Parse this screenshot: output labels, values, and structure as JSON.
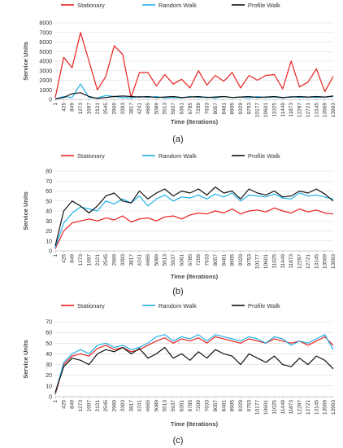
{
  "series_colors": {
    "Stationary": "#e8201f",
    "Random Walk": "#1fb0e6",
    "Profile Walk": "#111111"
  },
  "x_ticks": [
    "1",
    "425",
    "849",
    "1273",
    "1697",
    "2121",
    "2545",
    "2969",
    "3393",
    "3817",
    "4241",
    "4665",
    "5089",
    "5513",
    "5937",
    "6361",
    "6785",
    "7209",
    "7633",
    "8057",
    "8481",
    "8905",
    "9329",
    "9753",
    "10177",
    "10601",
    "11025",
    "11449",
    "11873",
    "12297",
    "12721",
    "13145",
    "13569",
    "13993"
  ],
  "chart_data": [
    {
      "type": "line",
      "subtitle": "(a)",
      "xlabel": "Time (Iterations)",
      "ylabel": "Service Units",
      "ylim": [
        0,
        8000
      ],
      "yticks": [
        0,
        1000,
        2000,
        3000,
        4000,
        5000,
        6000,
        7000,
        8000
      ],
      "grid": true,
      "legend": "top",
      "x": [
        1,
        425,
        849,
        1273,
        1697,
        2121,
        2545,
        2969,
        3393,
        3817,
        4241,
        4665,
        5089,
        5513,
        5937,
        6361,
        6785,
        7209,
        7633,
        8057,
        8481,
        8905,
        9329,
        9753,
        10177,
        10601,
        11025,
        11449,
        11873,
        12297,
        12721,
        13145,
        13569,
        13993
      ],
      "series": [
        {
          "name": "Stationary",
          "values": [
            200,
            4400,
            3300,
            7000,
            4000,
            1000,
            2400,
            5600,
            4700,
            200,
            2800,
            2800,
            1400,
            2600,
            1600,
            2100,
            1200,
            3000,
            1500,
            2500,
            1900,
            2800,
            1200,
            2500,
            2000,
            2500,
            2600,
            1100,
            4000,
            1300,
            1800,
            3200,
            800,
            2400
          ]
        },
        {
          "name": "Random Walk",
          "values": [
            50,
            300,
            200,
            1600,
            200,
            150,
            400,
            300,
            200,
            150,
            300,
            200,
            300,
            150,
            200,
            150,
            300,
            200,
            250,
            150,
            300,
            200,
            250,
            150,
            300,
            200,
            250,
            150,
            300,
            200,
            250,
            200,
            250,
            300
          ]
        },
        {
          "name": "Profile Walk",
          "values": [
            50,
            200,
            600,
            700,
            300,
            100,
            200,
            300,
            350,
            300,
            250,
            300,
            200,
            250,
            300,
            200,
            250,
            300,
            200,
            250,
            300,
            200,
            250,
            300,
            200,
            250,
            300,
            200,
            250,
            300,
            250,
            300,
            250,
            350
          ]
        }
      ]
    },
    {
      "type": "line",
      "subtitle": "(b)",
      "xlabel": "Time (Iterations)",
      "ylabel": "Service Units",
      "ylim": [
        0,
        80
      ],
      "yticks": [
        0,
        10,
        20,
        30,
        40,
        50,
        60,
        70,
        80
      ],
      "grid": true,
      "legend": "top",
      "x": [
        1,
        425,
        849,
        1273,
        1697,
        2121,
        2545,
        2969,
        3393,
        3817,
        4241,
        4665,
        5089,
        5513,
        5937,
        6361,
        6785,
        7209,
        7633,
        8057,
        8481,
        8905,
        9329,
        9753,
        10177,
        10601,
        11025,
        11449,
        11873,
        12297,
        12721,
        13145,
        13569,
        13993
      ],
      "series": [
        {
          "name": "Stationary",
          "values": [
            2,
            20,
            28,
            30,
            32,
            30,
            33,
            31,
            35,
            29,
            32,
            33,
            30,
            34,
            35,
            32,
            36,
            38,
            37,
            40,
            38,
            42,
            37,
            40,
            41,
            39,
            43,
            40,
            38,
            42,
            39,
            41,
            38,
            37
          ]
        },
        {
          "name": "Random Walk",
          "values": [
            3,
            28,
            38,
            44,
            42,
            40,
            50,
            47,
            52,
            48,
            55,
            45,
            52,
            56,
            50,
            54,
            53,
            56,
            52,
            57,
            54,
            58,
            50,
            56,
            55,
            54,
            57,
            53,
            52,
            58,
            55,
            56,
            54,
            52
          ]
        },
        {
          "name": "Profile Walk",
          "values": [
            5,
            40,
            50,
            45,
            38,
            45,
            55,
            58,
            50,
            48,
            60,
            52,
            58,
            62,
            55,
            60,
            58,
            62,
            56,
            64,
            58,
            60,
            52,
            62,
            58,
            56,
            60,
            54,
            55,
            60,
            58,
            62,
            57,
            50
          ]
        }
      ]
    },
    {
      "type": "line",
      "subtitle": "(c)",
      "xlabel": "Time (Iterations)",
      "ylabel": "Service Units",
      "ylim": [
        0,
        70
      ],
      "yticks": [
        0,
        10,
        20,
        30,
        40,
        50,
        60,
        70
      ],
      "grid": true,
      "legend": "top",
      "x": [
        1,
        425,
        849,
        1273,
        1697,
        2121,
        2545,
        2969,
        3393,
        3817,
        4241,
        4665,
        5089,
        5513,
        5937,
        6361,
        6785,
        7209,
        7633,
        8057,
        8481,
        8905,
        9329,
        9753,
        10177,
        10601,
        11025,
        11449,
        11873,
        12297,
        12721,
        13145,
        13569,
        13993
      ],
      "series": [
        {
          "name": "Stationary",
          "values": [
            2,
            30,
            38,
            40,
            38,
            45,
            48,
            44,
            46,
            42,
            44,
            48,
            52,
            55,
            50,
            54,
            52,
            55,
            50,
            56,
            54,
            52,
            50,
            54,
            52,
            50,
            54,
            52,
            50,
            52,
            48,
            52,
            56,
            48
          ]
        },
        {
          "name": "Random Walk",
          "values": [
            3,
            32,
            40,
            44,
            40,
            48,
            50,
            46,
            48,
            44,
            46,
            50,
            56,
            58,
            52,
            56,
            54,
            58,
            52,
            58,
            56,
            54,
            52,
            56,
            54,
            50,
            56,
            54,
            48,
            52,
            50,
            54,
            58,
            44
          ]
        },
        {
          "name": "Profile Walk",
          "values": [
            4,
            28,
            36,
            34,
            30,
            40,
            44,
            42,
            46,
            40,
            45,
            36,
            40,
            46,
            36,
            40,
            34,
            42,
            36,
            44,
            40,
            38,
            30,
            40,
            36,
            32,
            38,
            30,
            28,
            36,
            30,
            38,
            34,
            26
          ]
        }
      ]
    }
  ]
}
